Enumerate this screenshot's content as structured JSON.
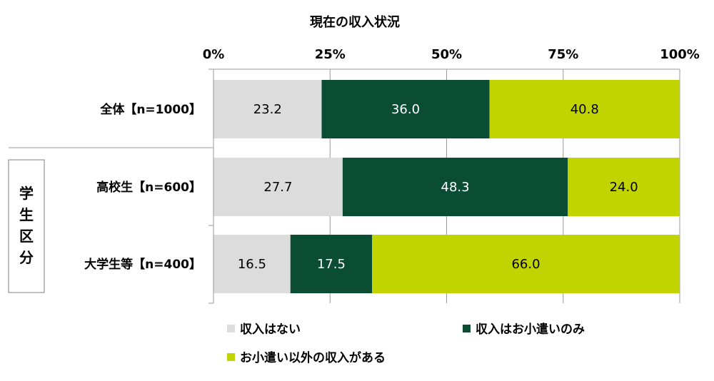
{
  "chart_data": {
    "type": "bar",
    "orientation": "horizontal",
    "stacked": true,
    "percent": true,
    "title": "現在の収入状況",
    "xlim": [
      0,
      100
    ],
    "xticks": [
      "0%",
      "25%",
      "50%",
      "75%",
      "100%"
    ],
    "grid": true,
    "legend_position": "bottom",
    "group_label": "学生区分",
    "categories": [
      "全体【n=1000】",
      "高校生【n=600】",
      "大学生等【n=400】"
    ],
    "series": [
      {
        "name": "収入はない",
        "values": [
          23.2,
          27.7,
          16.5
        ],
        "color": "#dcdcdc",
        "label_color": "#000000"
      },
      {
        "name": "収入はお小遣いのみ",
        "values": [
          36.0,
          48.3,
          17.5
        ],
        "color": "#0b4d33",
        "label_color": "#ffffff"
      },
      {
        "name": "お小遣い以外の収入がある",
        "values": [
          40.8,
          24.0,
          66.0
        ],
        "color": "#c2d400",
        "label_color": "#000000"
      }
    ]
  }
}
